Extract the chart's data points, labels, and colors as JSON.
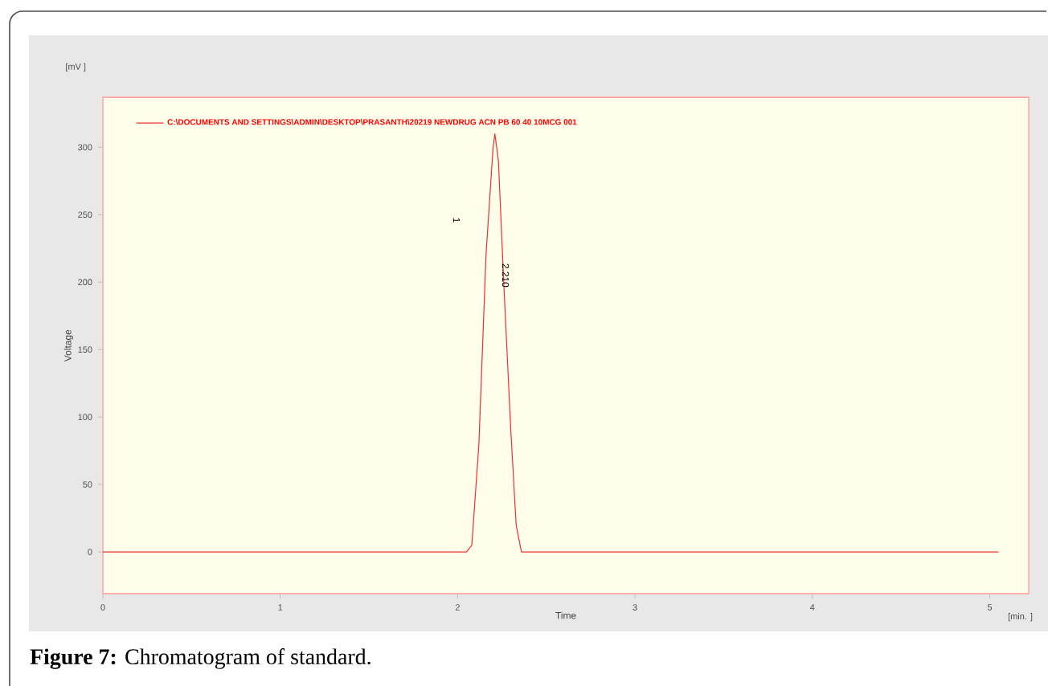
{
  "chart_data": {
    "type": "line",
    "xlabel": "Time",
    "ylabel": "Voltage",
    "x": [
      0,
      2.05,
      2.08,
      2.12,
      2.16,
      2.2,
      2.21,
      2.23,
      2.26,
      2.3,
      2.33,
      2.36,
      5.05
    ],
    "series": [
      {
        "name": "C:\\DOCUMENTS AND SETTINGS\\ADMIN\\DESKTOP\\PRASANTH\\20219 NEWDRUG ACN PB 60 40 10MCG 001",
        "color": "#f03030",
        "values": [
          0,
          0,
          5,
          80,
          220,
          300,
          310,
          290,
          200,
          90,
          20,
          0,
          0
        ]
      }
    ],
    "xlim": [
      0,
      5.22
    ],
    "ylim": [
      -31,
      337
    ],
    "xticks": [
      0,
      1,
      2,
      3,
      4,
      5
    ],
    "yticks": [
      0,
      50,
      100,
      150,
      200,
      250,
      300
    ],
    "legend": "top left",
    "grid": false,
    "marker": "none",
    "line_style": "solid",
    "annotations": [
      "[mV ]",
      "[min. ]",
      "**Figure 7:** Chromatogram of standard.",
      "1",
      {
        "text": "2.210",
        "x": 2.27,
        "y": 205
      }
    ]
  }
}
